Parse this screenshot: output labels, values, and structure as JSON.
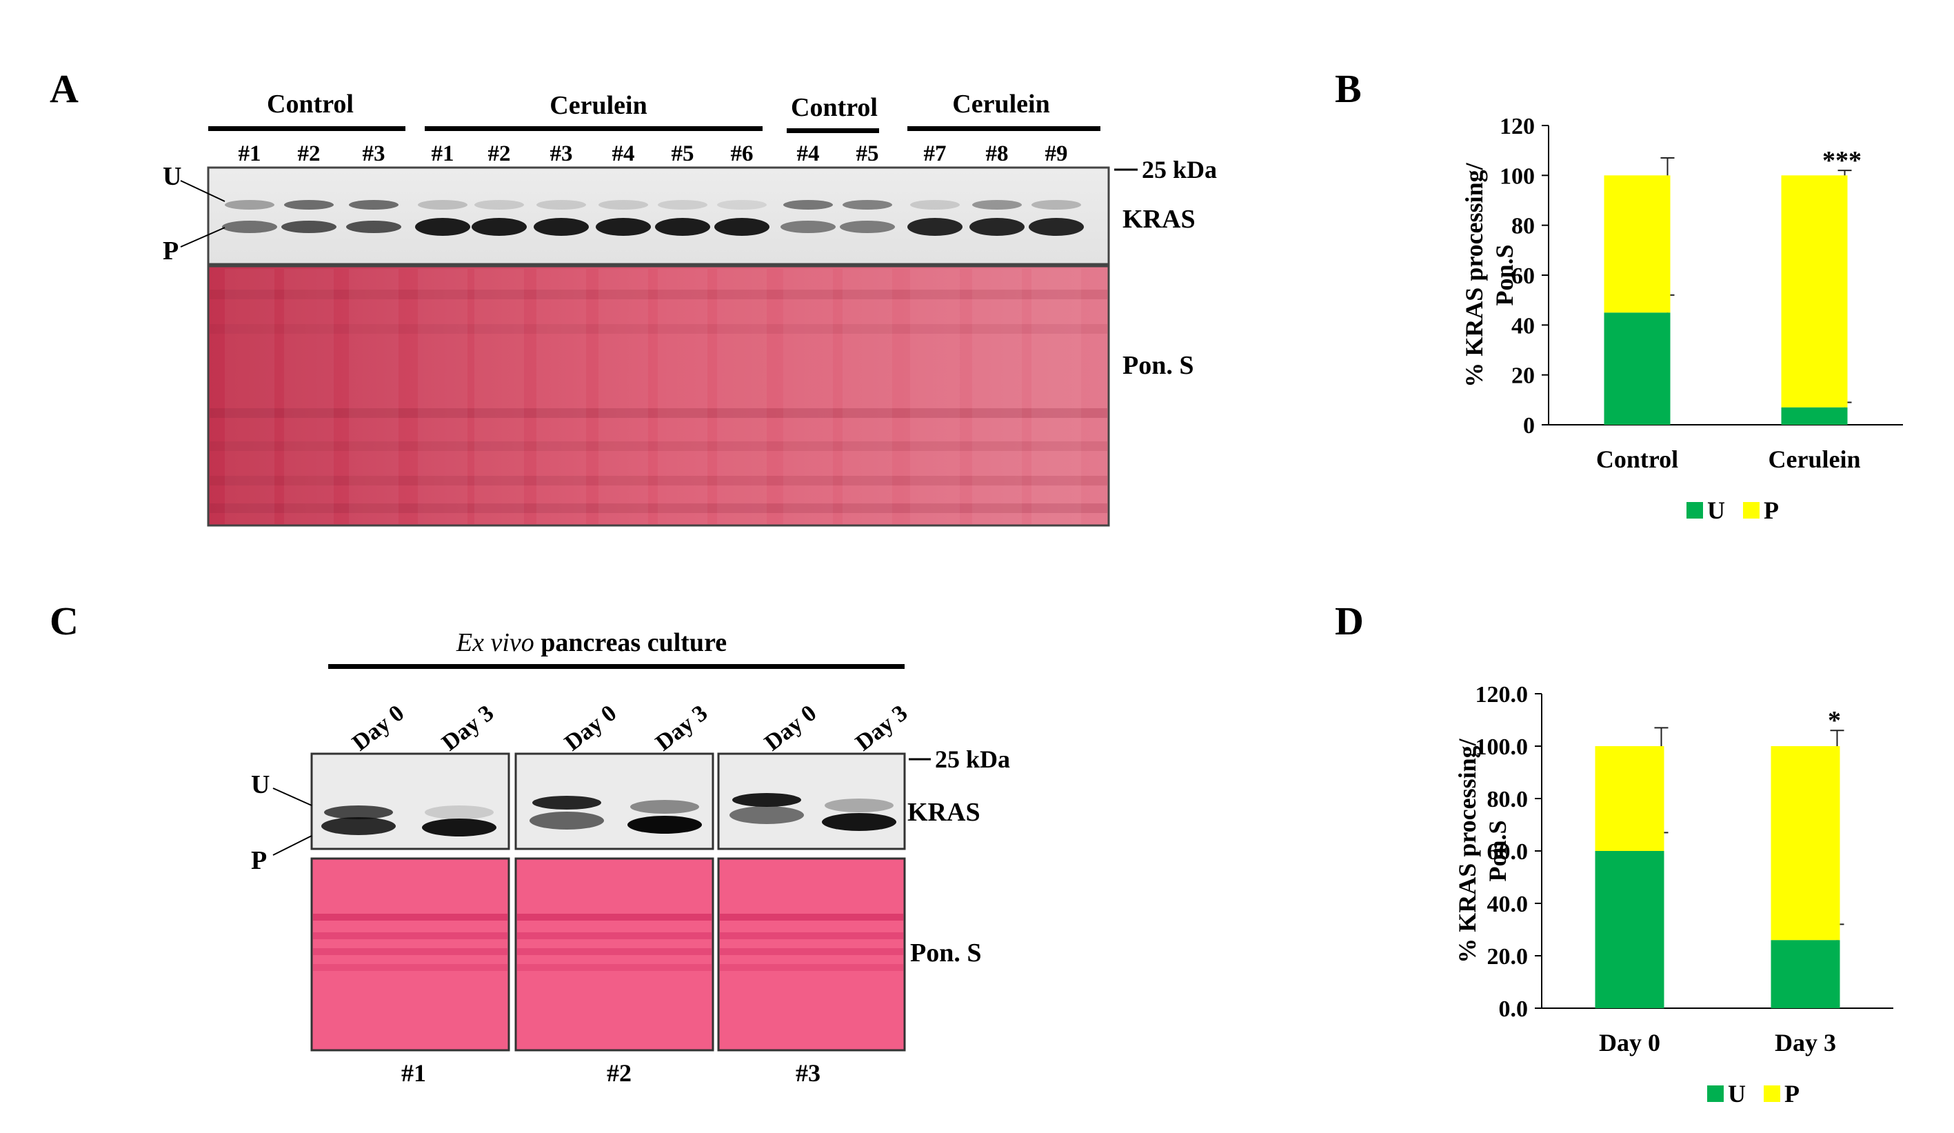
{
  "panels": {
    "A": {
      "letter": "A",
      "groups": [
        "Control",
        "Cerulein",
        "Control",
        "Cerulein"
      ],
      "lanes": [
        "#1",
        "#2",
        "#3",
        "#1",
        "#2",
        "#3",
        "#4",
        "#5",
        "#6",
        "#4",
        "#5",
        "#7",
        "#8",
        "#9"
      ],
      "marker": "25 kDa",
      "band_u": "U",
      "band_p": "P",
      "protein": "KRAS",
      "stain": "Pon. S"
    },
    "B": {
      "letter": "B"
    },
    "C": {
      "letter": "C",
      "title_italic": "Ex vivo",
      "title_rest": " pancreas culture",
      "lanes": [
        "Day 0",
        "Day 3",
        "Day 0",
        "Day 3",
        "Day 0",
        "Day 3"
      ],
      "marker": "25 kDa",
      "band_u": "U",
      "band_p": "P",
      "protein": "KRAS",
      "stain": "Pon. S",
      "samples": [
        "#1",
        "#2",
        "#3"
      ]
    },
    "D": {
      "letter": "D"
    }
  },
  "colors": {
    "U": "#00b050",
    "P": "#ffff00",
    "ponceau": "#d9546a",
    "ponceau_c": "#f25e88"
  },
  "chart_data": [
    {
      "panel": "B",
      "type": "bar",
      "stacked": true,
      "categories": [
        "Control",
        "Cerulein"
      ],
      "series": [
        {
          "name": "U",
          "values": [
            45,
            7
          ],
          "error": [
            7,
            2
          ]
        },
        {
          "name": "P",
          "values": [
            55,
            93
          ],
          "error": [
            7,
            2
          ]
        }
      ],
      "ylabel_line1": "% KRAS processing/",
      "ylabel_line2": "Pon.S",
      "ylim": [
        0,
        120
      ],
      "yticks": [
        "0",
        "20",
        "40",
        "60",
        "80",
        "100",
        "120"
      ],
      "annotations": [
        "",
        "***"
      ],
      "legend": "bottom",
      "grid": false
    },
    {
      "panel": "D",
      "type": "bar",
      "stacked": true,
      "categories": [
        "Day 0",
        "Day 3"
      ],
      "series": [
        {
          "name": "U",
          "values": [
            60,
            26
          ],
          "error": [
            7,
            6
          ]
        },
        {
          "name": "P",
          "values": [
            40,
            74
          ],
          "error": [
            7,
            6
          ]
        }
      ],
      "ylabel_line1": "% KRAS processing/",
      "ylabel_line2": "Pon.S",
      "ylim": [
        0,
        120
      ],
      "yticks": [
        "0.0",
        "20.0",
        "40.0",
        "60.0",
        "80.0",
        "100.0",
        "120.0"
      ],
      "annotations": [
        "",
        "*"
      ],
      "legend": "bottom",
      "grid": false
    }
  ]
}
